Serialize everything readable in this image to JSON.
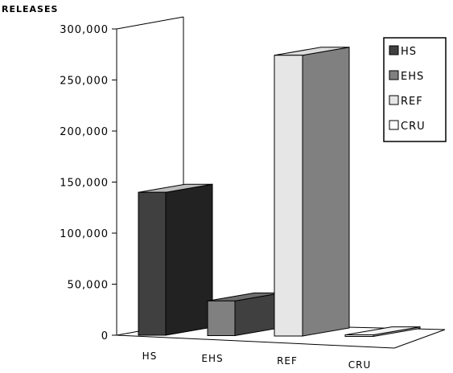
{
  "chart_data": {
    "type": "bar",
    "ylabel": "RELEASES",
    "categories": [
      "HS",
      "EHS",
      "REF",
      "CRU"
    ],
    "ylim": [
      0,
      300000
    ],
    "yticks": [
      0,
      50000,
      100000,
      150000,
      200000,
      250000,
      300000
    ],
    "ytick_labels": [
      "0",
      "50,000",
      "100,000",
      "150,000",
      "200,000",
      "250,000",
      "300,000"
    ],
    "series": [
      {
        "name": "HS",
        "values": [
          140000,
          null,
          null,
          null
        ],
        "color": "#404040",
        "side_color": "#222222",
        "top_color": "#bdbdbd"
      },
      {
        "name": "EHS",
        "values": [
          null,
          34000,
          null,
          null
        ],
        "color": "#808080",
        "side_color": "#404040",
        "top_color": "#6e6e6e"
      },
      {
        "name": "REF",
        "values": [
          null,
          null,
          275000,
          null
        ],
        "color": "#e6e6e6",
        "side_color": "#808080",
        "top_color": "#dcdcdc"
      },
      {
        "name": "CRU",
        "values": [
          null,
          null,
          null,
          1500
        ],
        "color": "#ffffff",
        "side_color": "#a6a6a6",
        "top_color": "#f2f2f2"
      }
    ],
    "legend_position": "top-right",
    "gridlines": false,
    "style": "3d"
  }
}
